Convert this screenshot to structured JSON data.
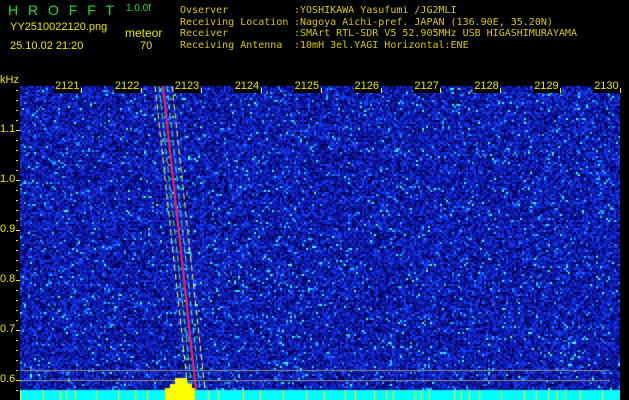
{
  "header": {
    "logo": "H R O F F T",
    "version": "1.0.0f",
    "filename": "YY2510022120.png",
    "datetime": "25.10.02 21:20",
    "mode_label": "meteor",
    "mode_value": "70",
    "info": [
      {
        "label": "Ovserver",
        "value": ":YOSHIKAWA Yasufumi /JG2MLI"
      },
      {
        "label": "Receiving Location",
        "value": ":Nagoya Aichi-pref. JAPAN (136.90E, 35.20N)"
      },
      {
        "label": "Receiver",
        "value": ":SMArt RTL-SDR V5 52.905MHz USB HIGASHIMURAYAMA"
      },
      {
        "label": "Receiving Antenna",
        "value": ":10mH 3el.YAGI Horizontal:ENE"
      }
    ]
  },
  "spectrogram": {
    "y_unit": "kHz",
    "y_ticks": [
      "1.1",
      "1.0",
      "0.9",
      "0.8",
      "0.7",
      "0.6"
    ],
    "x_ticks": [
      "2121",
      "2122",
      "2123",
      "2124",
      "2125",
      "2126",
      "2127",
      "2128",
      "2129",
      "2130"
    ],
    "colors": {
      "noise": "#1020c0",
      "trace": "#ff2060",
      "level": "#00ffff",
      "peak": "#ffff00"
    }
  }
}
